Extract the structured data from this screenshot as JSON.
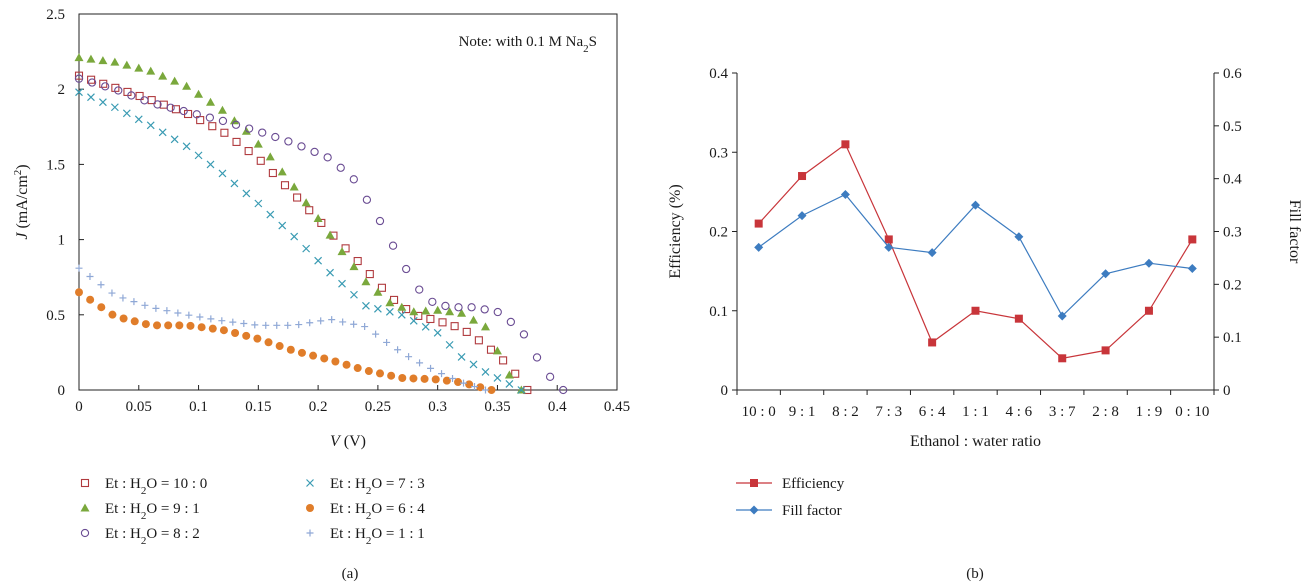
{
  "chart_data": [
    {
      "type": "scatter",
      "panel_label": "(a)",
      "annotation": {
        "prefix": "Note: with 0.1 M Na",
        "sub": "2",
        "suffix": "S"
      },
      "xlabel": {
        "italic": "V",
        "rest": " (V)"
      },
      "ylabel": {
        "italic": "J",
        "rest": " (mA/cm",
        "sup": "2",
        "close": ")"
      },
      "xlim": [
        0,
        0.45
      ],
      "ylim": [
        0,
        2.5
      ],
      "x_ticks": [
        "0",
        "0.05",
        "0.1",
        "0.15",
        "0.2",
        "0.25",
        "0.3",
        "0.35",
        "0.4",
        "0.45"
      ],
      "y_ticks": [
        "0",
        "0.5",
        "1",
        "1.5",
        "2",
        "2.5"
      ],
      "grid": false,
      "legend_position": "below",
      "series": [
        {
          "legend": {
            "a": "Et : H",
            "sub": "2",
            "b": "O = 10 : 0"
          },
          "marker": "open-square",
          "color": "#b03a3e",
          "points": [
            [
              0,
              2.09
            ],
            [
              0.03,
              2.01
            ],
            [
              0.06,
              1.93
            ],
            [
              0.09,
              1.84
            ],
            [
              0.12,
              1.72
            ],
            [
              0.15,
              1.54
            ],
            [
              0.18,
              1.3
            ],
            [
              0.21,
              1.05
            ],
            [
              0.24,
              0.8
            ],
            [
              0.26,
              0.62
            ],
            [
              0.28,
              0.5
            ],
            [
              0.3,
              0.46
            ],
            [
              0.32,
              0.41
            ],
            [
              0.34,
              0.3
            ],
            [
              0.36,
              0.16
            ],
            [
              0.375,
              0.0
            ]
          ]
        },
        {
          "legend": {
            "a": "Et : H",
            "sub": "2",
            "b": "O = 9 : 1"
          },
          "marker": "filled-triangle",
          "color": "#7aa83c",
          "points": [
            [
              0,
              2.21
            ],
            [
              0.03,
              2.18
            ],
            [
              0.06,
              2.12
            ],
            [
              0.09,
              2.02
            ],
            [
              0.12,
              1.86
            ],
            [
              0.14,
              1.72
            ],
            [
              0.16,
              1.55
            ],
            [
              0.18,
              1.35
            ],
            [
              0.2,
              1.14
            ],
            [
              0.22,
              0.92
            ],
            [
              0.24,
              0.72
            ],
            [
              0.26,
              0.58
            ],
            [
              0.28,
              0.52
            ],
            [
              0.3,
              0.53
            ],
            [
              0.32,
              0.51
            ],
            [
              0.34,
              0.42
            ],
            [
              0.36,
              0.1
            ],
            [
              0.37,
              0.0
            ]
          ]
        },
        {
          "legend": {
            "a": "Et : H",
            "sub": "2",
            "b": "O = 8 : 2"
          },
          "marker": "open-circle",
          "color": "#6a4c93",
          "points": [
            [
              0,
              2.07
            ],
            [
              0.03,
              2.0
            ],
            [
              0.06,
              1.91
            ],
            [
              0.09,
              1.85
            ],
            [
              0.12,
              1.79
            ],
            [
              0.15,
              1.72
            ],
            [
              0.18,
              1.64
            ],
            [
              0.21,
              1.54
            ],
            [
              0.23,
              1.4
            ],
            [
              0.25,
              1.15
            ],
            [
              0.27,
              0.85
            ],
            [
              0.29,
              0.6
            ],
            [
              0.31,
              0.55
            ],
            [
              0.33,
              0.55
            ],
            [
              0.35,
              0.52
            ],
            [
              0.37,
              0.4
            ],
            [
              0.39,
              0.12
            ],
            [
              0.405,
              0.0
            ]
          ]
        },
        {
          "legend": {
            "a": "Et : H",
            "sub": "2",
            "b": "O = 7 : 3"
          },
          "marker": "x",
          "color": "#3a9bb3",
          "points": [
            [
              0,
              1.98
            ],
            [
              0.03,
              1.88
            ],
            [
              0.06,
              1.76
            ],
            [
              0.09,
              1.62
            ],
            [
              0.12,
              1.44
            ],
            [
              0.15,
              1.24
            ],
            [
              0.18,
              1.02
            ],
            [
              0.21,
              0.78
            ],
            [
              0.24,
              0.56
            ],
            [
              0.27,
              0.5
            ],
            [
              0.3,
              0.38
            ],
            [
              0.32,
              0.22
            ],
            [
              0.34,
              0.12
            ],
            [
              0.36,
              0.04
            ],
            [
              0.37,
              0.0
            ]
          ]
        },
        {
          "legend": {
            "a": "Et : H",
            "sub": "2",
            "b": "O = 6 : 4"
          },
          "marker": "filled-circle",
          "color": "#e07d2a",
          "points": [
            [
              0,
              0.65
            ],
            [
              0.03,
              0.49
            ],
            [
              0.06,
              0.43
            ],
            [
              0.09,
              0.43
            ],
            [
              0.12,
              0.4
            ],
            [
              0.15,
              0.34
            ],
            [
              0.18,
              0.26
            ],
            [
              0.21,
              0.2
            ],
            [
              0.24,
              0.13
            ],
            [
              0.27,
              0.08
            ],
            [
              0.3,
              0.07
            ],
            [
              0.32,
              0.05
            ],
            [
              0.34,
              0.01
            ],
            [
              0.345,
              0.0
            ]
          ]
        },
        {
          "legend": {
            "a": "Et : H",
            "sub": "2",
            "b": "O = 1 : 1"
          },
          "marker": "plus",
          "color": "#8fa8d6",
          "points": [
            [
              0,
              0.81
            ],
            [
              0.03,
              0.63
            ],
            [
              0.06,
              0.55
            ],
            [
              0.09,
              0.5
            ],
            [
              0.12,
              0.46
            ],
            [
              0.15,
              0.43
            ],
            [
              0.18,
              0.43
            ],
            [
              0.21,
              0.47
            ],
            [
              0.24,
              0.42
            ],
            [
              0.26,
              0.3
            ],
            [
              0.28,
              0.2
            ],
            [
              0.3,
              0.12
            ],
            [
              0.32,
              0.05
            ],
            [
              0.34,
              0.0
            ]
          ]
        }
      ]
    },
    {
      "type": "line",
      "panel_label": "(b)",
      "categories": [
        "10 : 0",
        "9 : 1",
        "8 : 2",
        "7 : 3",
        "6 : 4",
        "1 : 1",
        "4 : 6",
        "3 : 7",
        "2 : 8",
        "1 : 9",
        "0 : 10"
      ],
      "xlabel": "Ethanol : water ratio",
      "ylabel_left": "Efficiency (%)",
      "ylabel_right": "Fill factor",
      "ylim_left": [
        0,
        0.4
      ],
      "ylim_right": [
        0,
        0.6
      ],
      "y_ticks_left": [
        "0",
        "0.1",
        "0.2",
        "0.3",
        "0.4"
      ],
      "y_ticks_right": [
        "0",
        "0.1",
        "0.2",
        "0.3",
        "0.4",
        "0.5",
        "0.6"
      ],
      "grid": false,
      "legend_position": "below-left",
      "series": [
        {
          "name": "Efficiency",
          "axis": "left",
          "marker": "square",
          "color": "#c8353a",
          "values": [
            0.21,
            0.27,
            0.31,
            0.19,
            0.06,
            0.1,
            0.09,
            0.04,
            0.05,
            0.1,
            0.19
          ]
        },
        {
          "name": "Fill factor",
          "axis": "right",
          "marker": "diamond",
          "color": "#3d7cc0",
          "values": [
            0.27,
            0.33,
            0.37,
            0.27,
            0.26,
            0.35,
            0.29,
            0.14,
            0.22,
            0.24,
            0.23
          ]
        }
      ]
    }
  ]
}
